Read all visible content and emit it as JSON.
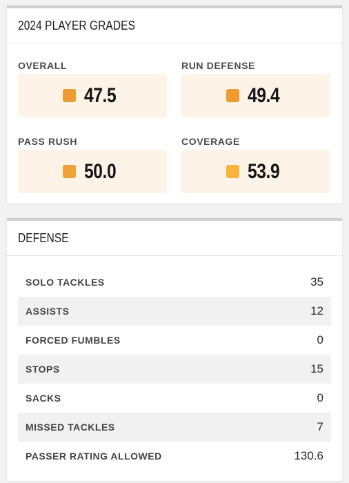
{
  "grades": {
    "title": "2024 PLAYER GRADES",
    "items": [
      {
        "label": "OVERALL",
        "value": "47.5",
        "color": "#ef9b32"
      },
      {
        "label": "RUN DEFENSE",
        "value": "49.4",
        "color": "#ef9b32"
      },
      {
        "label": "PASS RUSH",
        "value": "50.0",
        "color": "#f0a23a"
      },
      {
        "label": "COVERAGE",
        "value": "53.9",
        "color": "#f4b43e"
      }
    ]
  },
  "defense": {
    "title": "DEFENSE",
    "rows": [
      {
        "label": "SOLO TACKLES",
        "value": "35"
      },
      {
        "label": "ASSISTS",
        "value": "12"
      },
      {
        "label": "FORCED FUMBLES",
        "value": "0"
      },
      {
        "label": "STOPS",
        "value": "15"
      },
      {
        "label": "SACKS",
        "value": "0"
      },
      {
        "label": "MISSED TACKLES",
        "value": "7"
      },
      {
        "label": "PASSER RATING ALLOWED",
        "value": "130.6"
      }
    ]
  }
}
